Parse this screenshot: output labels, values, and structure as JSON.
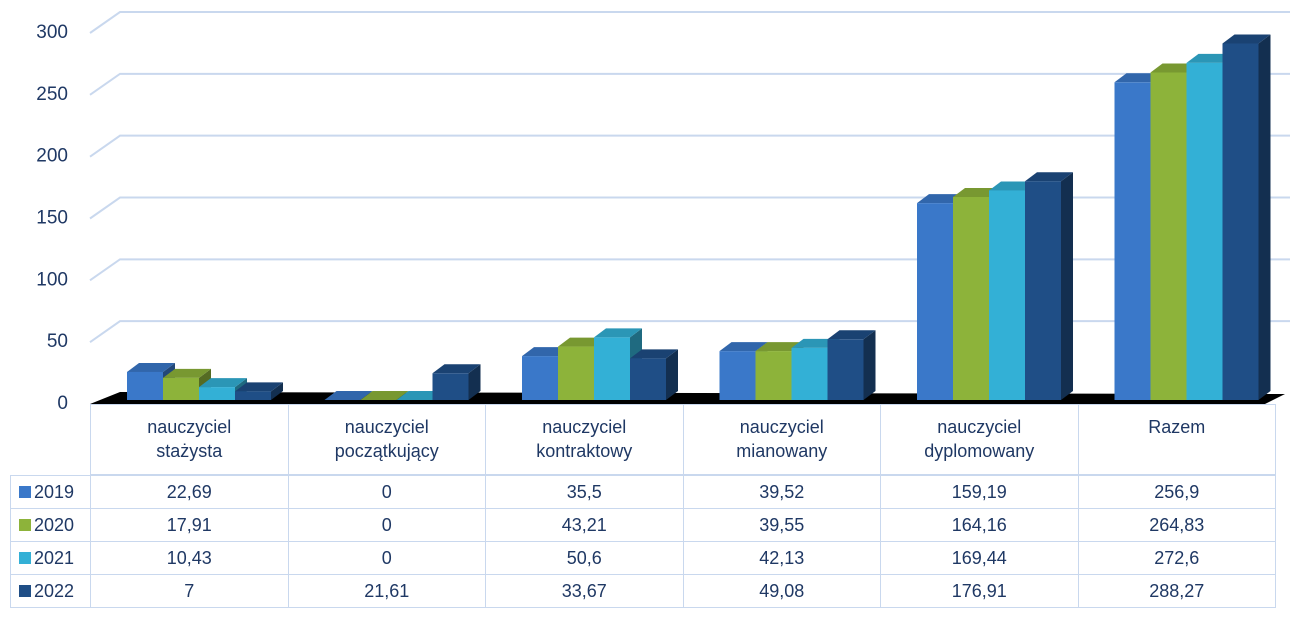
{
  "chart_data": {
    "type": "bar",
    "categories": [
      "nauczyciel stażysta",
      "nauczyciel początkujący",
      "nauczyciel kontraktowy",
      "nauczyciel mianowany",
      "nauczyciel dyplomowany",
      "Razem"
    ],
    "series": [
      {
        "name": "2019",
        "color": "#3a78c9",
        "values": [
          22.69,
          0,
          35.5,
          39.52,
          159.19,
          256.9
        ],
        "value_labels": [
          "22,69",
          "0",
          "35,5",
          "39,52",
          "159,19",
          "256,9"
        ]
      },
      {
        "name": "2020",
        "color": "#8db33a",
        "values": [
          17.91,
          0,
          43.21,
          39.55,
          164.16,
          264.83
        ],
        "value_labels": [
          "17,91",
          "0",
          "43,21",
          "39,55",
          "164,16",
          "264,83"
        ]
      },
      {
        "name": "2021",
        "color": "#33b0d6",
        "values": [
          10.43,
          0,
          50.6,
          42.13,
          169.44,
          272.6
        ],
        "value_labels": [
          "10,43",
          "0",
          "50,6",
          "42,13",
          "169,44",
          "272,6"
        ]
      },
      {
        "name": "2022",
        "color": "#1f4e86",
        "values": [
          7,
          21.61,
          33.67,
          49.08,
          176.91,
          288.27
        ],
        "value_labels": [
          "7",
          "21,61",
          "33,67",
          "49,08",
          "176,91",
          "288,27"
        ]
      }
    ],
    "ylim": [
      0,
      300
    ],
    "yticks": [
      0,
      50,
      100,
      150,
      200,
      250,
      300
    ],
    "grid": true
  }
}
